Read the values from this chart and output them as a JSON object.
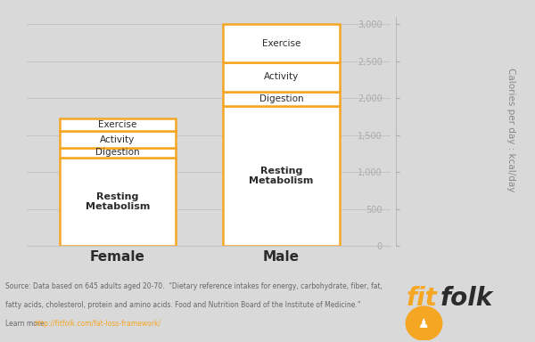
{
  "background_color": "#d9d9d9",
  "categories": [
    "Female",
    "Male"
  ],
  "segments": {
    "Female": {
      "Resting Metabolism": 1200,
      "Digestion": 130,
      "Activity": 230,
      "Exercise": 170
    },
    "Male": {
      "Resting Metabolism": 1900,
      "Digestion": 190,
      "Activity": 400,
      "Exercise": 510
    }
  },
  "segment_order": [
    "Resting Metabolism",
    "Digestion",
    "Activity",
    "Exercise"
  ],
  "segment_face_color": "#ffffff",
  "border_color": "#f5a623",
  "border_linewidth": 1.8,
  "text_color": "#2b2b2b",
  "resting_label": "Resting\nMetabolism",
  "ylabel": "Calories per day : kcal/day",
  "ylim": [
    0,
    3100
  ],
  "yticks": [
    0,
    500,
    1000,
    1500,
    2000,
    2500,
    3000
  ],
  "ytick_labels": [
    "0",
    "500",
    "1,000",
    "1,500",
    "2,000",
    "2,500",
    "3,000"
  ],
  "grid_color": "#c4c4c4",
  "grid_linewidth": 0.7,
  "source_text1": "Source: Data based on 645 adults aged 20-70.  “Dietary reference intakes for energy, carbohydrate, fiber, fat,",
  "source_text2": "fatty acids, cholesterol, protein and amino acids. Food and Nutrition Board of the Institute of Medicine.”",
  "learn_prefix": "Learn more: ",
  "learn_url": "http://fitfolk.com/fat-loss-framework/",
  "learn_color": "#f5a623",
  "source_color": "#666666",
  "logo_fit_color": "#f5a623",
  "logo_folk_color": "#2b2b2b",
  "logo_circle_color": "#f5a623"
}
